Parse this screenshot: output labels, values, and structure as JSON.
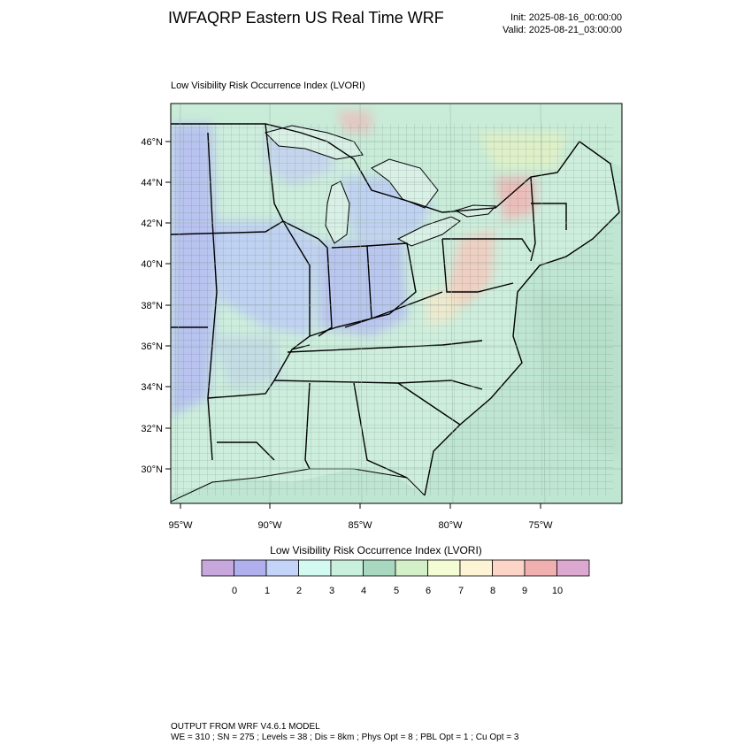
{
  "header": {
    "title": "IWFAQRP Eastern US Real Time WRF",
    "init": "Init: 2025-08-16_00:00:00",
    "valid": "Valid: 2025-08-21_03:00:00"
  },
  "map": {
    "field_title": "Low Visibility Risk Occurrence Index   (LVORI)",
    "lat_labels": [
      "46°N",
      "44°N",
      "42°N",
      "40°N",
      "38°N",
      "36°N",
      "34°N",
      "32°N",
      "30°N"
    ],
    "lon_labels": [
      "95°W",
      "90°W",
      "85°W",
      "80°W",
      "75°W"
    ],
    "colors": {
      "land_base": "#cdeedd",
      "ocean": "#bfe6d2",
      "canada": "#c8ecd8",
      "lake": "#d8f0e6",
      "boundary": "#000000"
    }
  },
  "colorbar": {
    "title": "Low Visibility Risk Occurrence Index  (LVORI)",
    "labels": [
      "0",
      "1",
      "2",
      "3",
      "4",
      "5",
      "6",
      "7",
      "8",
      "9",
      "10"
    ],
    "colors": [
      "#c8a8dc",
      "#b0b0ee",
      "#c4d4f8",
      "#d2faf0",
      "#c8f0dc",
      "#a8d8c0",
      "#d4f0c8",
      "#f4fcd4",
      "#fcf4d4",
      "#fcd4c8",
      "#f0b0b0",
      "#dca8d0"
    ]
  },
  "footer": {
    "line1": "OUTPUT FROM WRF V4.6.1 MODEL",
    "line2": "WE = 310 ; SN = 275 ; Levels = 38 ; Dis = 8km ; Phys Opt = 8 ; PBL Opt = 1 ; Cu Opt = 3"
  }
}
